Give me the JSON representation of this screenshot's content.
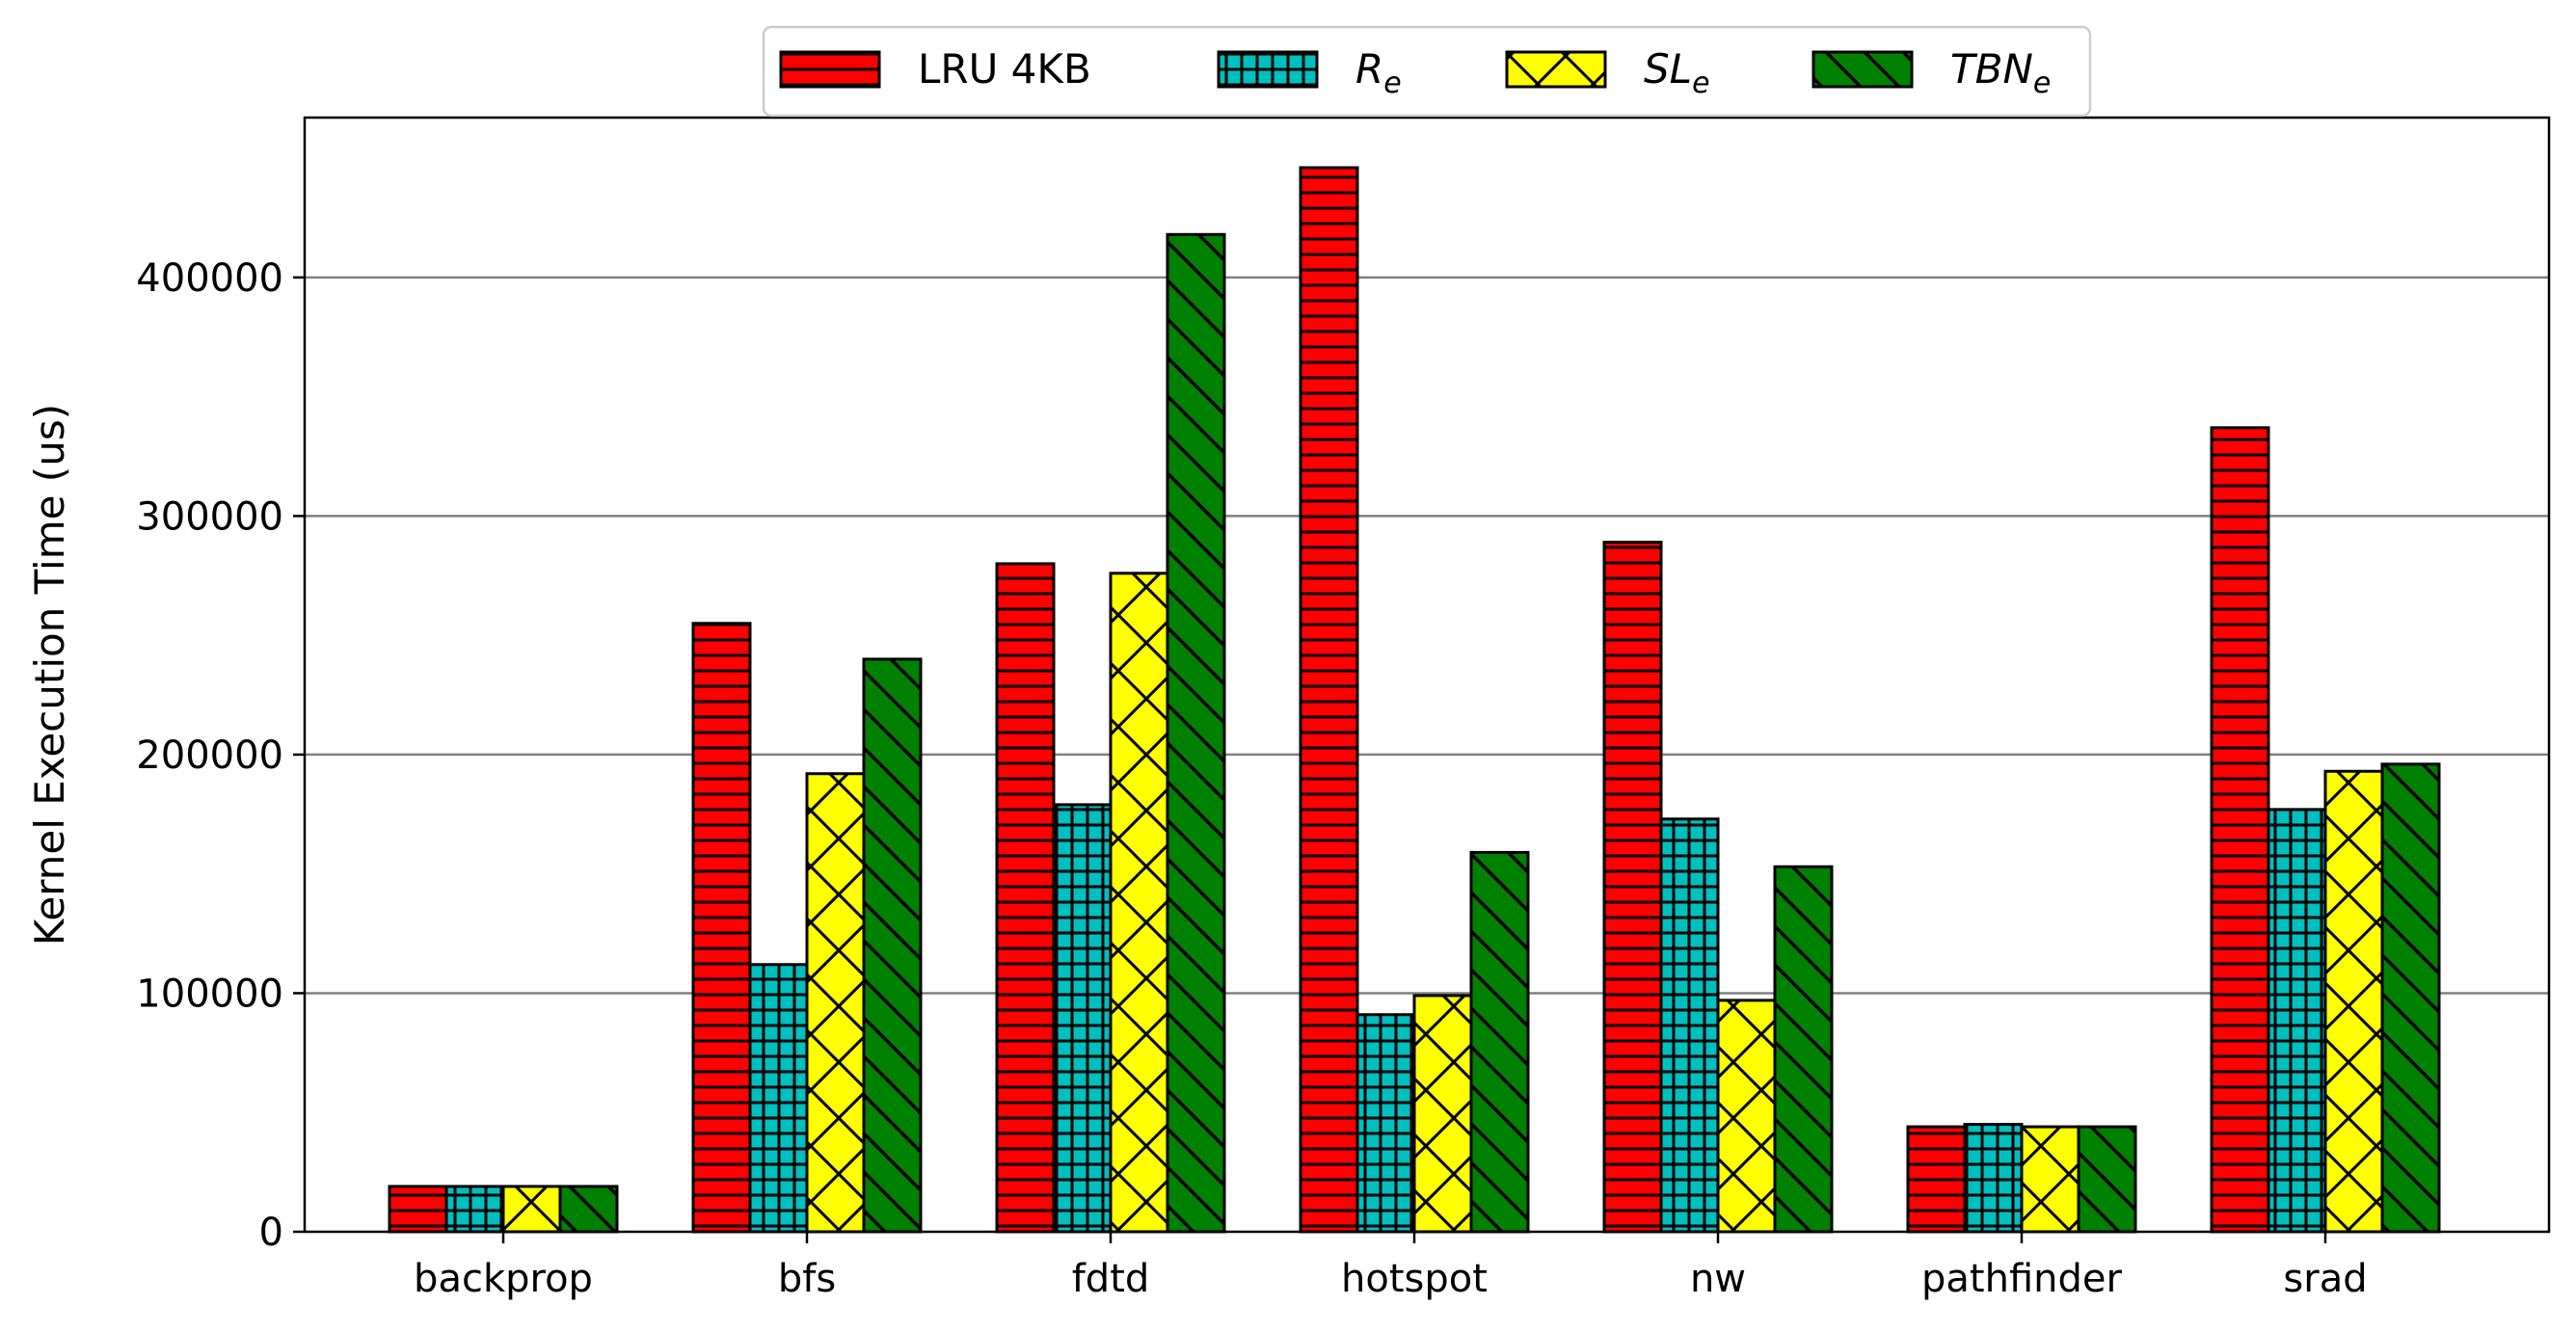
{
  "chart_data": {
    "type": "bar",
    "title": "",
    "xlabel": "",
    "ylabel": "Kernel Execution Time (us)",
    "ylim": [
      0,
      467000
    ],
    "yticks": [
      0,
      100000,
      200000,
      300000,
      400000
    ],
    "ytick_labels": [
      "0",
      "100000",
      "200000",
      "300000",
      "400000"
    ],
    "grid": "horizontal",
    "legend_position": "top-center",
    "categories": [
      "backprop",
      "bfs",
      "fdtd",
      "hotspot",
      "nw",
      "pathfinder",
      "srad"
    ],
    "series": [
      {
        "name": "LRU 4KB",
        "name_base": "LRU 4KB",
        "name_sub": "",
        "italic": false,
        "color": "#ff0000",
        "hatch": "horizontal",
        "values": [
          19000,
          255000,
          280000,
          446000,
          289000,
          44000,
          337000
        ]
      },
      {
        "name": "Re",
        "name_base": "R",
        "name_sub": "e",
        "italic": true,
        "color": "#00bfbf",
        "hatch": "grid",
        "values": [
          19000,
          112000,
          179000,
          91000,
          173000,
          45000,
          177000
        ]
      },
      {
        "name": "SLe",
        "name_base": "SL",
        "name_sub": "e",
        "italic": true,
        "color": "#ffff00",
        "hatch": "crosshatch",
        "values": [
          19000,
          192000,
          276000,
          99000,
          97000,
          44000,
          193000
        ]
      },
      {
        "name": "TBNe",
        "name_base": "TBN",
        "name_sub": "e",
        "italic": true,
        "color": "#008000",
        "hatch": "backslash",
        "values": [
          19000,
          240000,
          418000,
          159000,
          153000,
          44000,
          196000
        ]
      }
    ]
  }
}
